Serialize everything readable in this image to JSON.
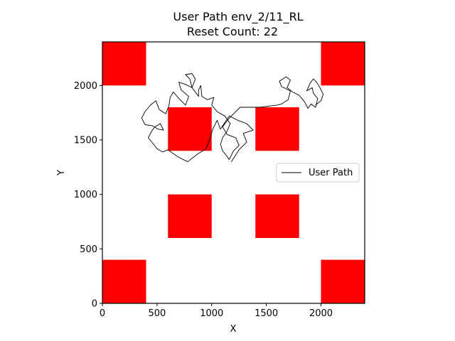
{
  "chart_data": {
    "type": "line",
    "title_line1": "User Path env_2/11_RL",
    "title_line2": "Reset Count: 22",
    "xlabel": "X",
    "ylabel": "Y",
    "xlim": [
      0,
      2400
    ],
    "ylim": [
      0,
      2400
    ],
    "xticks": [
      0,
      500,
      1000,
      1500,
      2000
    ],
    "yticks": [
      0,
      500,
      1000,
      1500,
      2000
    ],
    "grid": false,
    "legend": {
      "position": "right",
      "entries": [
        "User Path"
      ]
    },
    "colors": {
      "obstacle": "#ff0000",
      "path": "#000000"
    },
    "obstacles": [
      {
        "x0": 0,
        "y0": 2000,
        "x1": 400,
        "y1": 2400
      },
      {
        "x0": 2000,
        "y0": 2000,
        "x1": 2400,
        "y1": 2400
      },
      {
        "x0": 600,
        "y0": 1400,
        "x1": 1000,
        "y1": 1800
      },
      {
        "x0": 1400,
        "y0": 1400,
        "x1": 1800,
        "y1": 1800
      },
      {
        "x0": 600,
        "y0": 600,
        "x1": 1000,
        "y1": 1000
      },
      {
        "x0": 1400,
        "y0": 600,
        "x1": 1800,
        "y1": 1000
      },
      {
        "x0": 0,
        "y0": 0,
        "x1": 400,
        "y1": 400
      },
      {
        "x0": 2000,
        "y0": 0,
        "x1": 2400,
        "y1": 400
      }
    ],
    "series": [
      {
        "name": "User Path",
        "points": [
          [
            1180,
            1300
          ],
          [
            1250,
            1410
          ],
          [
            1320,
            1480
          ],
          [
            1290,
            1560
          ],
          [
            1380,
            1590
          ],
          [
            1320,
            1650
          ],
          [
            1240,
            1680
          ],
          [
            1160,
            1720
          ],
          [
            1120,
            1660
          ],
          [
            1080,
            1600
          ],
          [
            1050,
            1680
          ],
          [
            1010,
            1600
          ],
          [
            980,
            1500
          ],
          [
            950,
            1420
          ],
          [
            870,
            1370
          ],
          [
            780,
            1300
          ],
          [
            700,
            1340
          ],
          [
            640,
            1380
          ],
          [
            600,
            1410
          ],
          [
            550,
            1390
          ],
          [
            500,
            1420
          ],
          [
            460,
            1470
          ],
          [
            420,
            1520
          ],
          [
            450,
            1580
          ],
          [
            480,
            1620
          ],
          [
            530,
            1650
          ],
          [
            560,
            1590
          ],
          [
            510,
            1600
          ],
          [
            460,
            1630
          ],
          [
            390,
            1640
          ],
          [
            360,
            1700
          ],
          [
            390,
            1760
          ],
          [
            440,
            1820
          ],
          [
            490,
            1860
          ],
          [
            520,
            1780
          ],
          [
            580,
            1740
          ],
          [
            610,
            1820
          ],
          [
            620,
            1890
          ],
          [
            650,
            1940
          ],
          [
            700,
            1880
          ],
          [
            760,
            1820
          ],
          [
            790,
            1900
          ],
          [
            720,
            1960
          ],
          [
            700,
            2030
          ],
          [
            760,
            2010
          ],
          [
            820,
            1980
          ],
          [
            800,
            2060
          ],
          [
            760,
            2100
          ],
          [
            820,
            2110
          ],
          [
            850,
            2060
          ],
          [
            820,
            1980
          ],
          [
            880,
            1900
          ],
          [
            880,
            1960
          ],
          [
            900,
            2000
          ],
          [
            910,
            1900
          ],
          [
            960,
            1870
          ],
          [
            1020,
            1890
          ],
          [
            1000,
            1820
          ],
          [
            1050,
            1760
          ],
          [
            1120,
            1720
          ],
          [
            1170,
            1650
          ],
          [
            1140,
            1580
          ],
          [
            1100,
            1520
          ],
          [
            1080,
            1460
          ],
          [
            1100,
            1400
          ],
          [
            1140,
            1350
          ],
          [
            1160,
            1320
          ],
          [
            1200,
            1400
          ],
          [
            1250,
            1450
          ],
          [
            1220,
            1520
          ],
          [
            1140,
            1550
          ],
          [
            1100,
            1620
          ],
          [
            1160,
            1700
          ],
          [
            1220,
            1760
          ],
          [
            1260,
            1800
          ],
          [
            1340,
            1800
          ],
          [
            1380,
            1800
          ],
          [
            1440,
            1800
          ],
          [
            1520,
            1810
          ],
          [
            1600,
            1820
          ],
          [
            1640,
            1830
          ],
          [
            1700,
            1870
          ],
          [
            1720,
            1950
          ],
          [
            1640,
            1990
          ],
          [
            1620,
            2040
          ],
          [
            1680,
            2080
          ],
          [
            1720,
            2050
          ],
          [
            1690,
            1980
          ],
          [
            1740,
            1940
          ],
          [
            1800,
            1910
          ],
          [
            1850,
            1850
          ],
          [
            1880,
            1790
          ],
          [
            1910,
            1830
          ],
          [
            1950,
            1800
          ],
          [
            1970,
            1880
          ],
          [
            1930,
            1930
          ],
          [
            1920,
            1980
          ],
          [
            1870,
            1950
          ],
          [
            1900,
            2020
          ],
          [
            1930,
            2060
          ],
          [
            1960,
            2030
          ],
          [
            1990,
            1980
          ],
          [
            2020,
            1920
          ],
          [
            2000,
            1860
          ],
          [
            1950,
            1820
          ]
        ]
      }
    ]
  }
}
